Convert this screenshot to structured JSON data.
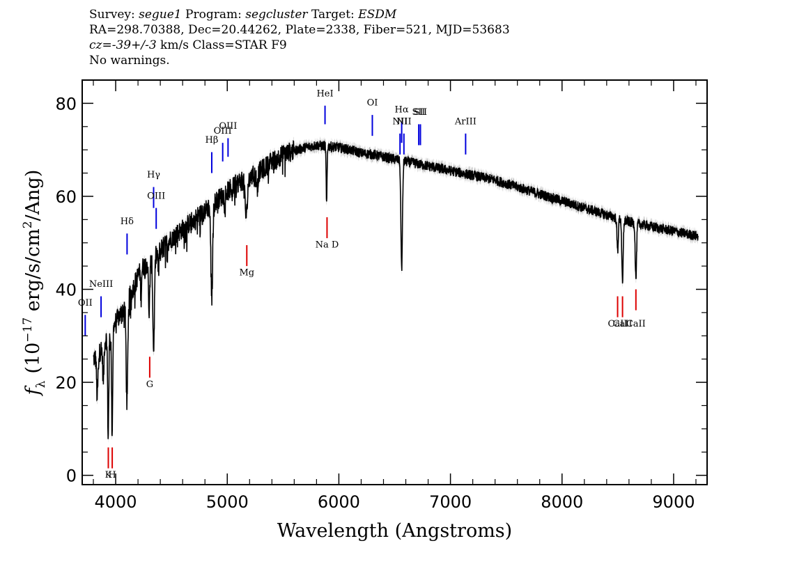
{
  "header": {
    "line1": {
      "survey_label": "Survey: ",
      "survey": "segue1",
      "program_label": " Program: ",
      "program": "segcluster",
      "target_label": " Target: ",
      "target": "ESDM"
    },
    "line2": "RA=298.70388, Dec=20.44262, Plate=2338, Fiber=521, MJD=53683",
    "line3": {
      "cz_label": "cz",
      "cz_value": "=-39+/-3",
      "rest": " km/s Class=STAR F9"
    },
    "line4": "No warnings."
  },
  "chart_data": {
    "type": "line",
    "xlabel": "Wavelength (Angstroms)",
    "ylabel_parts": {
      "f": "f",
      "sub": "λ",
      "open": "(10",
      "exp": "−17",
      "mid": " erg/s/cm",
      "exp2": "2",
      "close": "/Ang)"
    },
    "xlim": [
      3700,
      9300
    ],
    "ylim": [
      -2,
      85
    ],
    "xticks": [
      4000,
      5000,
      6000,
      7000,
      8000,
      9000
    ],
    "yticks": [
      0,
      20,
      40,
      60,
      80
    ],
    "colors": {
      "spectrum": "#000000",
      "error": "#b4b4b4",
      "emission": "#0000dd",
      "absorption": "#dd0000"
    },
    "continuum": [
      [
        3800,
        25
      ],
      [
        3850,
        26
      ],
      [
        3900,
        29
      ],
      [
        3950,
        30
      ],
      [
        4000,
        33
      ],
      [
        4050,
        35
      ],
      [
        4100,
        37
      ],
      [
        4150,
        40
      ],
      [
        4200,
        43
      ],
      [
        4250,
        45
      ],
      [
        4300,
        46
      ],
      [
        4400,
        48.5
      ],
      [
        4500,
        51
      ],
      [
        4600,
        53
      ],
      [
        4700,
        55
      ],
      [
        4800,
        57
      ],
      [
        4900,
        59
      ],
      [
        5000,
        61
      ],
      [
        5100,
        63
      ],
      [
        5200,
        64
      ],
      [
        5300,
        65.5
      ],
      [
        5400,
        67.5
      ],
      [
        5500,
        69
      ],
      [
        5600,
        69.8
      ],
      [
        5700,
        70.5
      ],
      [
        5800,
        71
      ],
      [
        5900,
        70.8
      ],
      [
        6000,
        70.5
      ],
      [
        6100,
        70
      ],
      [
        6200,
        69.3
      ],
      [
        6300,
        69
      ],
      [
        6400,
        68.5
      ],
      [
        6500,
        68
      ],
      [
        6600,
        67.5
      ],
      [
        6700,
        67
      ],
      [
        6800,
        66.5
      ],
      [
        7000,
        65.5
      ],
      [
        7200,
        64.5
      ],
      [
        7400,
        63.5
      ],
      [
        7600,
        62
      ],
      [
        7800,
        60.5
      ],
      [
        8000,
        59
      ],
      [
        8200,
        57.5
      ],
      [
        8400,
        56
      ],
      [
        8600,
        54.5
      ],
      [
        8800,
        53.5
      ],
      [
        9000,
        52.5
      ],
      [
        9200,
        51.5
      ]
    ],
    "absorption_features": [
      {
        "x": 3835,
        "depth": 9,
        "width": 6
      },
      {
        "x": 3889,
        "depth": 8,
        "width": 6
      },
      {
        "x": 3933,
        "depth": 21,
        "width": 5
      },
      {
        "x": 3968,
        "depth": 22,
        "width": 5
      },
      {
        "x": 4101,
        "depth": 22,
        "width": 7
      },
      {
        "x": 4227,
        "depth": 6,
        "width": 4
      },
      {
        "x": 4300,
        "depth": 11,
        "width": 6
      },
      {
        "x": 4340,
        "depth": 20,
        "width": 7
      },
      {
        "x": 4383,
        "depth": 5,
        "width": 4
      },
      {
        "x": 4861,
        "depth": 20,
        "width": 8
      },
      {
        "x": 5170,
        "depth": 8,
        "width": 10
      },
      {
        "x": 5270,
        "depth": 3,
        "width": 6
      },
      {
        "x": 5890,
        "depth": 13,
        "width": 4
      },
      {
        "x": 6563,
        "depth": 23,
        "width": 7
      },
      {
        "x": 8498,
        "depth": 7,
        "width": 6
      },
      {
        "x": 8542,
        "depth": 14,
        "width": 6
      },
      {
        "x": 8662,
        "depth": 12,
        "width": 6
      }
    ],
    "emission_lines": [
      {
        "label": "OII",
        "x": 3727,
        "y_bottom": 30,
        "y_top": 34.5,
        "label_y": 36.5
      },
      {
        "label": "NeIII",
        "x": 3869,
        "y_bottom": 34,
        "y_top": 38.5,
        "label_y": 40.5
      },
      {
        "label": "Hδ",
        "x": 4102,
        "y_bottom": 47.5,
        "y_top": 52,
        "label_y": 54
      },
      {
        "label": "Hγ",
        "x": 4340,
        "y_bottom": 57.5,
        "y_top": 62,
        "label_y": 64
      },
      {
        "label": "OIII",
        "x": 4363,
        "y_bottom": 53,
        "y_top": 57.5,
        "label_y": 59.5
      },
      {
        "label": "Hβ",
        "x": 4861,
        "y_bottom": 65,
        "y_top": 69.5,
        "label_y": 71.5
      },
      {
        "label": "OIII",
        "x": 4959,
        "y_bottom": 67.5,
        "y_top": 71.5,
        "label_y": 73.5
      },
      {
        "label": "OIII",
        "x": 5007,
        "y_bottom": 68.5,
        "y_top": 72.5,
        "label_y": 74.5
      },
      {
        "label": "HeI",
        "x": 5876,
        "y_bottom": 75.5,
        "y_top": 79.5,
        "label_y": 81.5
      },
      {
        "label": "OI",
        "x": 6300,
        "y_bottom": 73,
        "y_top": 77.5,
        "label_y": 79.5
      },
      {
        "label": "NII",
        "x": 6548,
        "y_bottom": 69,
        "y_top": 73.5,
        "label_y": 75.5
      },
      {
        "label": "Hα",
        "x": 6563,
        "y_bottom": 71.5,
        "y_top": 76,
        "label_y": 78
      },
      {
        "label": "NII",
        "x": 6583,
        "y_bottom": 69,
        "y_top": 73.5,
        "label_y": 75.5
      },
      {
        "label": "SII",
        "x": 6716,
        "y_bottom": 71,
        "y_top": 75.5,
        "label_y": 77.5
      },
      {
        "label": "SII",
        "x": 6731,
        "y_bottom": 71,
        "y_top": 75.5,
        "label_y": 77.5
      },
      {
        "label": "ArIII",
        "x": 7136,
        "y_bottom": 69,
        "y_top": 73.5,
        "label_y": 75.5
      }
    ],
    "absorption_lines": [
      {
        "label": "K",
        "x": 3934,
        "y_bottom": 1.5,
        "y_top": 6,
        "label_y": -0.5
      },
      {
        "label": "H",
        "x": 3969,
        "y_bottom": 1.5,
        "y_top": 6,
        "label_y": -0.5
      },
      {
        "label": "G",
        "x": 4305,
        "y_bottom": 21,
        "y_top": 25.5,
        "label_y": 19
      },
      {
        "label": "Mg",
        "x": 5175,
        "y_bottom": 45,
        "y_top": 49.5,
        "label_y": 43
      },
      {
        "label": "Na D",
        "x": 5894,
        "y_bottom": 51,
        "y_top": 55.5,
        "label_y": 49
      },
      {
        "label": "CaII",
        "x": 8498,
        "y_bottom": 34,
        "y_top": 38.5,
        "label_y": 32
      },
      {
        "label": "CaII",
        "x": 8542,
        "y_bottom": 34,
        "y_top": 38.5,
        "label_y": 32
      },
      {
        "label": "CaII",
        "x": 8662,
        "y_bottom": 35.5,
        "y_top": 40,
        "label_y": 32
      }
    ]
  }
}
